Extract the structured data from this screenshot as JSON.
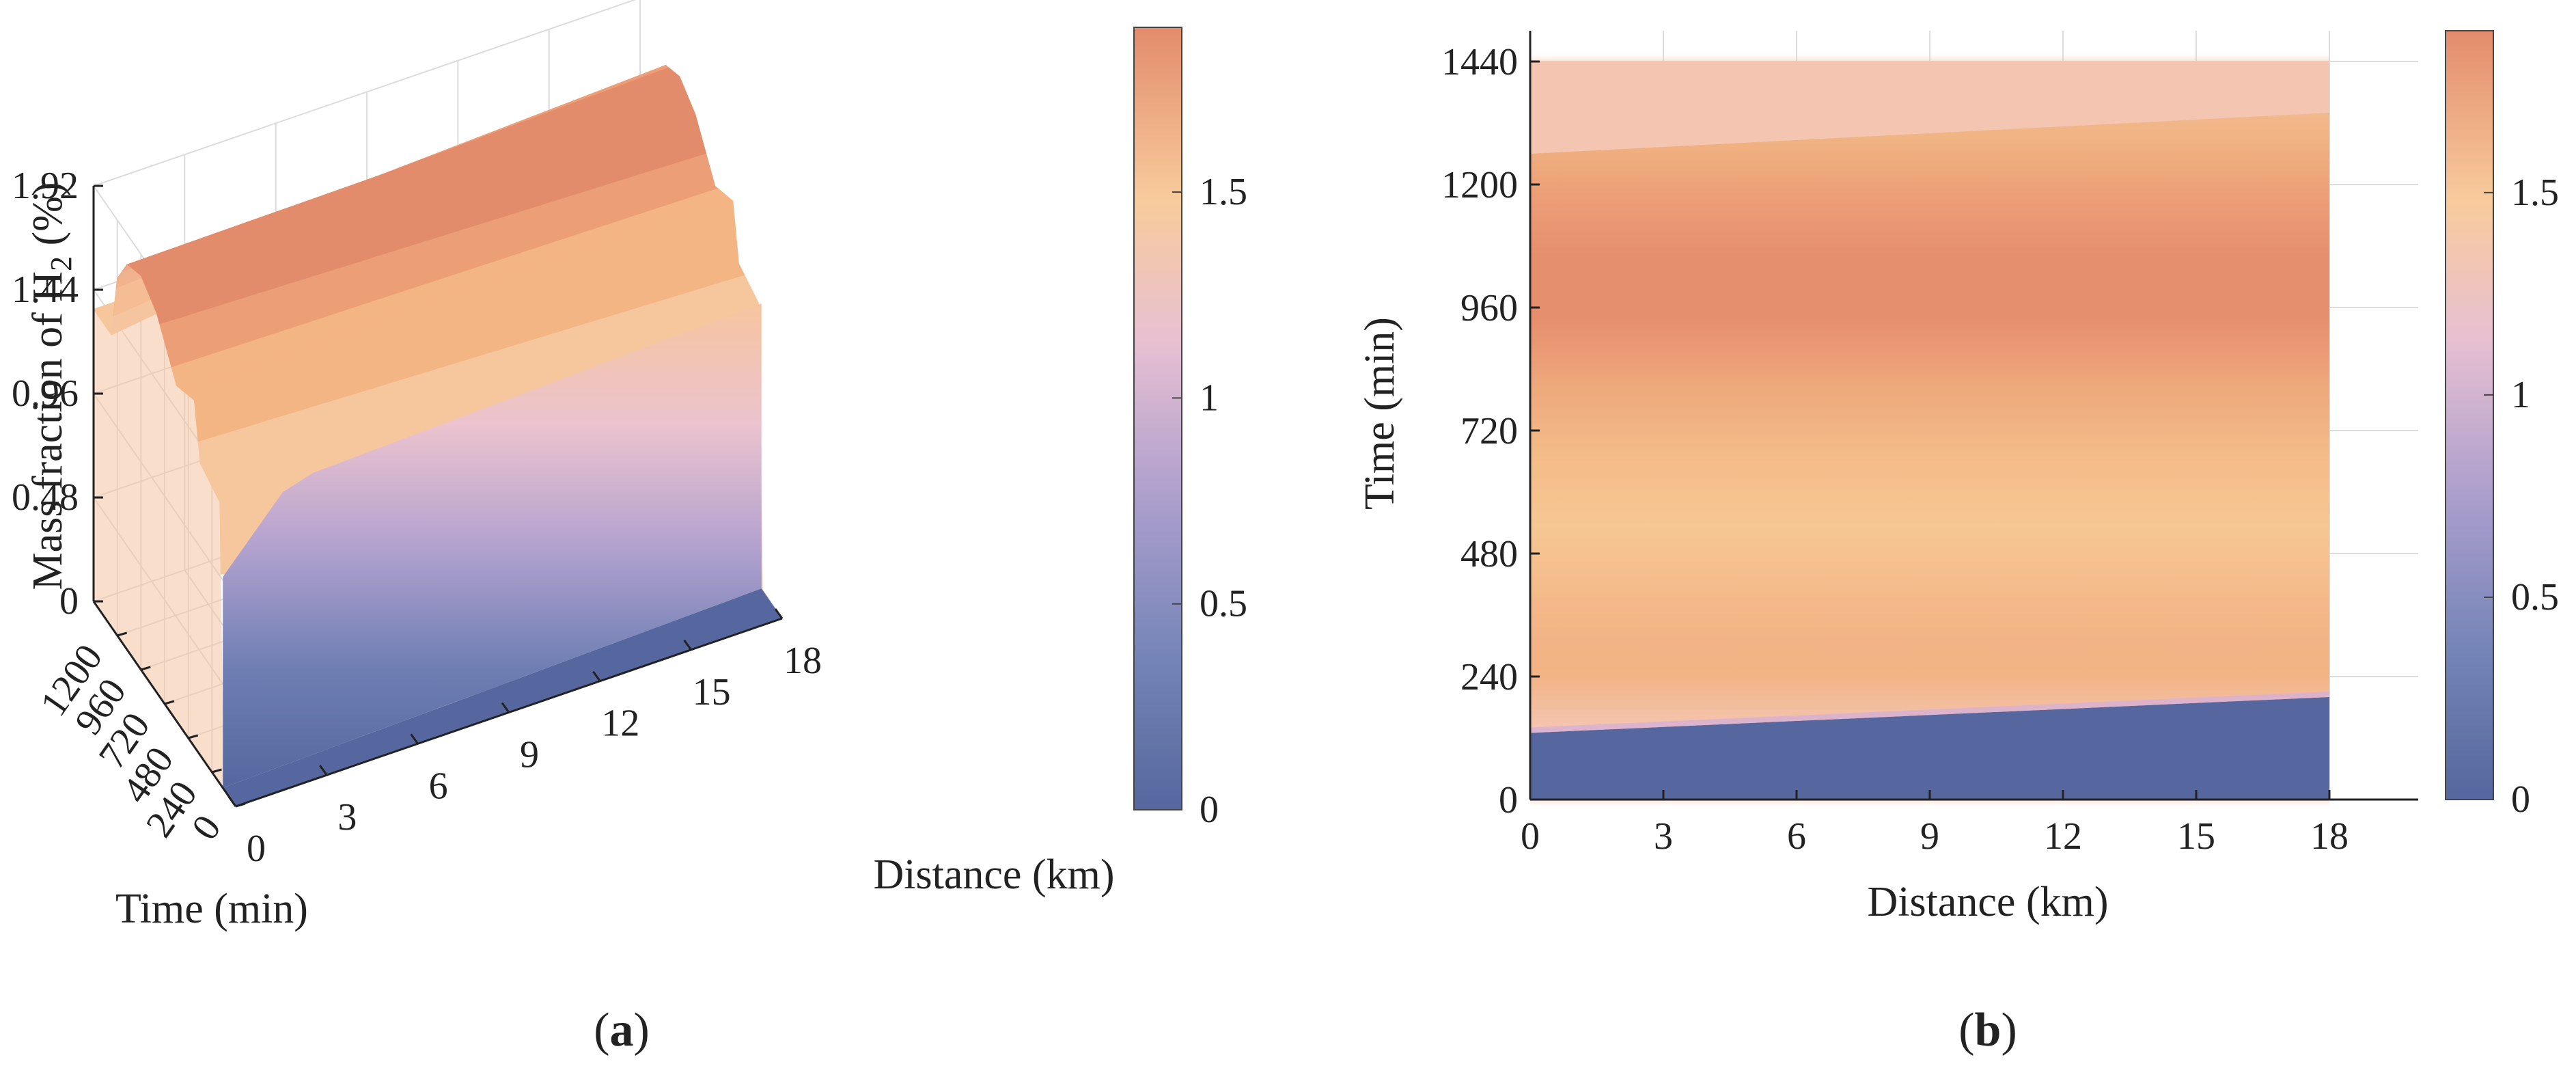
{
  "colors": {
    "colormap": [
      "#55679e",
      "#9b9bc9",
      "#e5bfd0",
      "#f8cb9b",
      "#e38c6c"
    ],
    "axis": "#222222",
    "grid": "#dcdcdc"
  },
  "chart_data": [
    {
      "panel": "(a)",
      "panel_letter": "a",
      "type": "surface",
      "xlabel": "Distance (km)",
      "ylabel": "Time (min)",
      "zlabel_main": "Mass fraction of H",
      "zlabel_sub": "2",
      "zlabel_tail": " (%)",
      "x_ticks": [
        "0",
        "3",
        "6",
        "9",
        "12",
        "15",
        "18"
      ],
      "y_ticks": [
        "0",
        "240",
        "480",
        "720",
        "960",
        "1200"
      ],
      "z_ticks": [
        "0",
        "0.48",
        "0.96",
        "1.44",
        "1.92"
      ],
      "xlim": [
        0,
        18
      ],
      "ylim": [
        0,
        1440
      ],
      "zlim": [
        0,
        1.92
      ],
      "colorbar": {
        "ticks": [
          "0",
          "0.5",
          "1",
          "1.5"
        ],
        "range": [
          0,
          1.9
        ]
      },
      "inlet_profile": {
        "time_min": [
          0,
          120,
          160,
          360,
          420,
          600,
          800,
          960,
          1100,
          1200,
          1260,
          1440
        ],
        "h2_percent": [
          0,
          0,
          1.3,
          1.35,
          1.6,
          1.55,
          1.75,
          1.82,
          1.78,
          1.65,
          1.35,
          1.35
        ]
      },
      "front_time_at_outlet_min": 210
    },
    {
      "panel": "(b)",
      "panel_letter": "b",
      "type": "heatmap",
      "xlabel": "Distance (km)",
      "ylabel": "Time (min)",
      "x_ticks": [
        "0",
        "3",
        "6",
        "9",
        "12",
        "15",
        "18"
      ],
      "y_ticks": [
        "0",
        "240",
        "480",
        "720",
        "960",
        "1200",
        "1440"
      ],
      "xlim": [
        0,
        20
      ],
      "ylim": [
        0,
        1500
      ],
      "data_extent": {
        "x": [
          0,
          18
        ],
        "y": [
          0,
          1440
        ]
      },
      "colorbar": {
        "ticks": [
          "0",
          "0.5",
          "1",
          "1.5"
        ],
        "range": [
          0,
          1.9
        ]
      },
      "bands": {
        "time_min": [
          0,
          130,
          150,
          340,
          400,
          560,
          720,
          880,
          1000,
          1100,
          1180,
          1260,
          1320,
          1440
        ],
        "h2_percent": [
          0,
          0,
          1.38,
          1.38,
          1.6,
          1.55,
          1.52,
          1.6,
          1.82,
          1.82,
          1.72,
          1.55,
          1.38,
          1.38
        ],
        "front_start_min": [
          130,
          200
        ],
        "front_upper_min": [
          1260,
          1340
        ]
      }
    }
  ]
}
